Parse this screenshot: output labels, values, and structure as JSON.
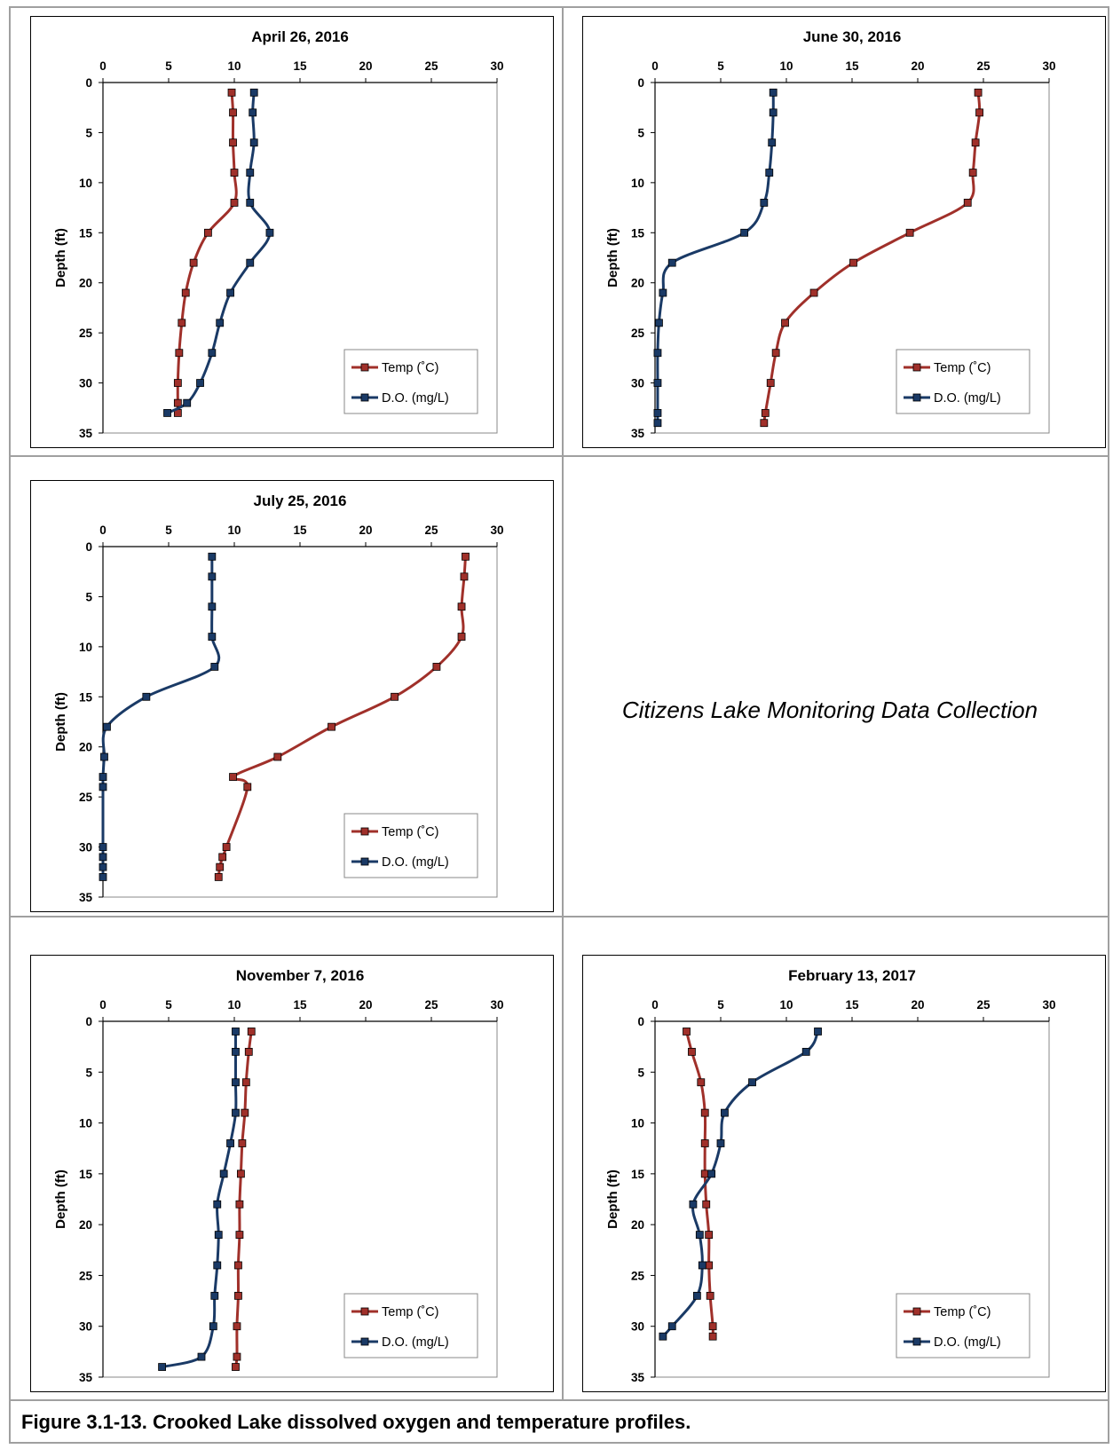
{
  "note_text": "Citizens Lake Monitoring Data Collection",
  "caption": "Figure 3.1-13.  Crooked Lake dissolved oxygen and temperature profiles.",
  "colors": {
    "temp": "#a0302a",
    "do": "#1a3a66"
  },
  "chart_data": [
    {
      "type": "line",
      "title": "April 26, 2016",
      "ylabel": "Depth (ft)",
      "xlim": [
        0,
        30
      ],
      "ylim": [
        0,
        35
      ],
      "x_ticks": [
        0,
        5,
        10,
        15,
        20,
        25,
        30
      ],
      "y_ticks": [
        0,
        5,
        10,
        15,
        20,
        25,
        30,
        35
      ],
      "y_inverted": true,
      "legend_position": "lower-right",
      "series": [
        {
          "name": "Temp (˚C)",
          "points": [
            [
              9.8,
              1
            ],
            [
              9.9,
              3
            ],
            [
              9.9,
              6
            ],
            [
              10.0,
              9
            ],
            [
              10.0,
              12
            ],
            [
              8.0,
              15
            ],
            [
              6.9,
              18
            ],
            [
              6.3,
              21
            ],
            [
              6.0,
              24
            ],
            [
              5.8,
              27
            ],
            [
              5.7,
              30
            ],
            [
              5.7,
              32
            ],
            [
              5.7,
              33
            ]
          ]
        },
        {
          "name": "D.O. (mg/L)",
          "points": [
            [
              11.5,
              1
            ],
            [
              11.4,
              3
            ],
            [
              11.5,
              6
            ],
            [
              11.2,
              9
            ],
            [
              11.2,
              12
            ],
            [
              12.7,
              15
            ],
            [
              11.2,
              18
            ],
            [
              9.7,
              21
            ],
            [
              8.9,
              24
            ],
            [
              8.3,
              27
            ],
            [
              7.4,
              30
            ],
            [
              6.4,
              32
            ],
            [
              4.9,
              33
            ]
          ]
        }
      ]
    },
    {
      "type": "line",
      "title": "June 30, 2016",
      "ylabel": "Depth (ft)",
      "xlim": [
        0,
        30
      ],
      "ylim": [
        0,
        35
      ],
      "x_ticks": [
        0,
        5,
        10,
        15,
        20,
        25,
        30
      ],
      "y_ticks": [
        0,
        5,
        10,
        15,
        20,
        25,
        30,
        35
      ],
      "y_inverted": true,
      "legend_position": "lower-right",
      "series": [
        {
          "name": "Temp (˚C)",
          "points": [
            [
              24.6,
              1
            ],
            [
              24.7,
              3
            ],
            [
              24.4,
              6
            ],
            [
              24.2,
              9
            ],
            [
              23.8,
              12
            ],
            [
              19.4,
              15
            ],
            [
              15.1,
              18
            ],
            [
              12.1,
              21
            ],
            [
              9.9,
              24
            ],
            [
              9.2,
              27
            ],
            [
              8.8,
              30
            ],
            [
              8.4,
              33
            ],
            [
              8.3,
              34
            ]
          ]
        },
        {
          "name": "D.O. (mg/L)",
          "points": [
            [
              9.0,
              1
            ],
            [
              9.0,
              3
            ],
            [
              8.9,
              6
            ],
            [
              8.7,
              9
            ],
            [
              8.3,
              12
            ],
            [
              6.8,
              15
            ],
            [
              1.3,
              18
            ],
            [
              0.6,
              21
            ],
            [
              0.3,
              24
            ],
            [
              0.2,
              27
            ],
            [
              0.2,
              30
            ],
            [
              0.2,
              33
            ],
            [
              0.2,
              34
            ]
          ]
        }
      ]
    },
    {
      "type": "line",
      "title": "July 25, 2016",
      "ylabel": "Depth (ft)",
      "xlim": [
        0,
        30
      ],
      "ylim": [
        0,
        35
      ],
      "x_ticks": [
        0,
        5,
        10,
        15,
        20,
        25,
        30
      ],
      "y_ticks": [
        0,
        5,
        10,
        15,
        20,
        25,
        30,
        35
      ],
      "y_inverted": true,
      "legend_position": "lower-right",
      "series": [
        {
          "name": "Temp (˚C)",
          "points": [
            [
              27.6,
              1
            ],
            [
              27.5,
              3
            ],
            [
              27.3,
              6
            ],
            [
              27.3,
              9
            ],
            [
              25.4,
              12
            ],
            [
              22.2,
              15
            ],
            [
              17.4,
              18
            ],
            [
              13.3,
              21
            ],
            [
              9.9,
              23
            ],
            [
              11.0,
              24
            ],
            [
              9.4,
              30
            ],
            [
              9.1,
              31
            ],
            [
              8.9,
              32
            ],
            [
              8.8,
              33
            ]
          ]
        },
        {
          "name": "D.O. (mg/L)",
          "points": [
            [
              8.3,
              1
            ],
            [
              8.3,
              3
            ],
            [
              8.3,
              6
            ],
            [
              8.3,
              9
            ],
            [
              8.5,
              12
            ],
            [
              3.3,
              15
            ],
            [
              0.3,
              18
            ],
            [
              0.1,
              21
            ],
            [
              0.0,
              23
            ],
            [
              0.0,
              24
            ],
            [
              0.0,
              30
            ],
            [
              0.0,
              31
            ],
            [
              0.0,
              32
            ],
            [
              0.0,
              33
            ]
          ]
        }
      ]
    },
    {
      "type": "line",
      "title": "November 7, 2016",
      "ylabel": "Depth (ft)",
      "xlim": [
        0,
        30
      ],
      "ylim": [
        0,
        35
      ],
      "x_ticks": [
        0,
        5,
        10,
        15,
        20,
        25,
        30
      ],
      "y_ticks": [
        0,
        5,
        10,
        15,
        20,
        25,
        30,
        35
      ],
      "y_inverted": true,
      "legend_position": "lower-right",
      "series": [
        {
          "name": "Temp (˚C)",
          "points": [
            [
              11.3,
              1
            ],
            [
              11.1,
              3
            ],
            [
              10.9,
              6
            ],
            [
              10.8,
              9
            ],
            [
              10.6,
              12
            ],
            [
              10.5,
              15
            ],
            [
              10.4,
              18
            ],
            [
              10.4,
              21
            ],
            [
              10.3,
              24
            ],
            [
              10.3,
              27
            ],
            [
              10.2,
              30
            ],
            [
              10.2,
              33
            ],
            [
              10.1,
              34
            ]
          ]
        },
        {
          "name": "D.O. (mg/L)",
          "points": [
            [
              10.1,
              1
            ],
            [
              10.1,
              3
            ],
            [
              10.1,
              6
            ],
            [
              10.1,
              9
            ],
            [
              9.7,
              12
            ],
            [
              9.2,
              15
            ],
            [
              8.7,
              18
            ],
            [
              8.8,
              21
            ],
            [
              8.7,
              24
            ],
            [
              8.5,
              27
            ],
            [
              8.4,
              30
            ],
            [
              7.5,
              33
            ],
            [
              4.5,
              34
            ]
          ]
        }
      ]
    },
    {
      "type": "line",
      "title": "February 13, 2017",
      "ylabel": "Depth (ft)",
      "xlim": [
        0,
        30
      ],
      "ylim": [
        0,
        35
      ],
      "x_ticks": [
        0,
        5,
        10,
        15,
        20,
        25,
        30
      ],
      "y_ticks": [
        0,
        5,
        10,
        15,
        20,
        25,
        30,
        35
      ],
      "y_inverted": true,
      "legend_position": "lower-right",
      "series": [
        {
          "name": "Temp (˚C)",
          "points": [
            [
              2.4,
              1
            ],
            [
              2.8,
              3
            ],
            [
              3.5,
              6
            ],
            [
              3.8,
              9
            ],
            [
              3.8,
              12
            ],
            [
              3.8,
              15
            ],
            [
              3.9,
              18
            ],
            [
              4.1,
              21
            ],
            [
              4.1,
              24
            ],
            [
              4.2,
              27
            ],
            [
              4.4,
              30
            ],
            [
              4.4,
              31
            ]
          ]
        },
        {
          "name": "D.O. (mg/L)",
          "points": [
            [
              12.4,
              1
            ],
            [
              11.5,
              3
            ],
            [
              7.4,
              6
            ],
            [
              5.3,
              9
            ],
            [
              5.0,
              12
            ],
            [
              4.3,
              15
            ],
            [
              2.9,
              18
            ],
            [
              3.4,
              21
            ],
            [
              3.6,
              24
            ],
            [
              3.2,
              27
            ],
            [
              1.3,
              30
            ],
            [
              0.6,
              31
            ]
          ]
        }
      ]
    }
  ]
}
